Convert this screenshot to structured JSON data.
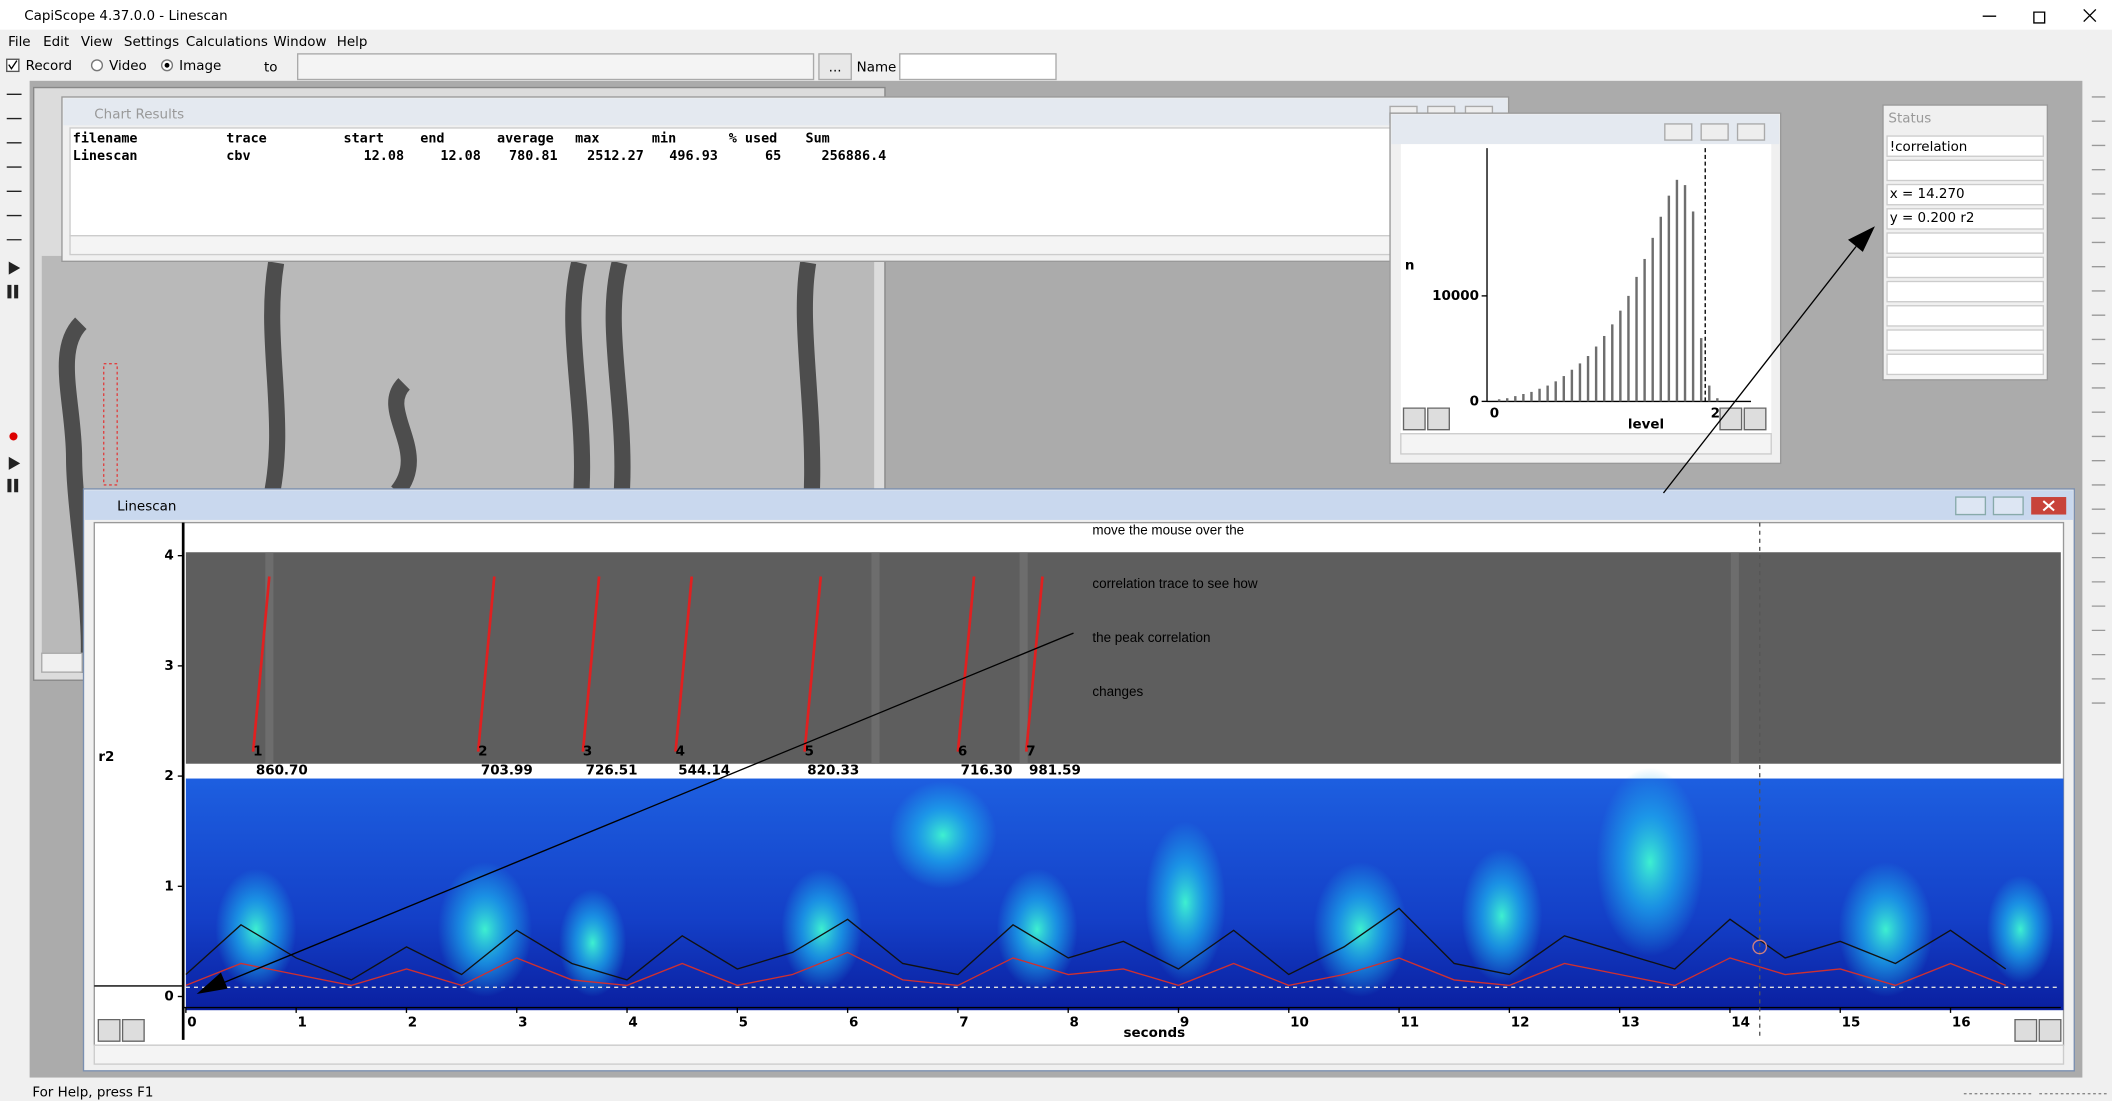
{
  "window": {
    "title": "CapiScope 4.37.0.0 - Linescan"
  },
  "menu": [
    "File",
    "Edit",
    "View",
    "Settings",
    "Calculations",
    "Window",
    "Help"
  ],
  "toolbar": {
    "record": "Record",
    "video": "Video",
    "image": "Image",
    "to": "to",
    "browse": "...",
    "name": "Name"
  },
  "chart_results": {
    "title": "Chart Results",
    "columns": [
      "filename",
      "trace",
      "start",
      "end",
      "average",
      "max",
      "min",
      "% used",
      "Sum"
    ],
    "rows": [
      [
        "Linescan",
        "cbv",
        "12.08",
        "12.08",
        "780.81",
        "2512.27",
        "496.93",
        "65",
        "256886.4"
      ]
    ]
  },
  "histogram": {
    "type": "bar",
    "y_label": "n",
    "x_label": "level",
    "ylim": [
      0,
      24000
    ],
    "yticks": [
      0,
      10000
    ],
    "x_tick_labels": [
      "0",
      "2"
    ],
    "color": "#6e6e6e",
    "counts": [
      200,
      300,
      500,
      700,
      900,
      1200,
      1500,
      1900,
      2400,
      3000,
      3600,
      4300,
      5200,
      6200,
      7300,
      8600,
      10000,
      11800,
      13500,
      15500,
      17500,
      19500,
      21000,
      20500,
      18000,
      6000,
      1500,
      300
    ]
  },
  "status": {
    "title": "Status",
    "fields": [
      "!correlation",
      "x = 14.270",
      "y = 0.200 r2"
    ]
  },
  "chart_data": {
    "type": "line",
    "title": "Linescan",
    "y_label": "r2",
    "x_label": "seconds",
    "xlim": [
      0,
      17
    ],
    "ylim": [
      -0.1,
      4.3
    ],
    "xticks": [
      0,
      1,
      2,
      3,
      4,
      5,
      6,
      7,
      8,
      9,
      10,
      11,
      12,
      13,
      14,
      15,
      16
    ],
    "yticks": [
      0,
      1,
      2,
      3,
      4
    ],
    "x": [
      0,
      0.5,
      1,
      1.5,
      2,
      2.5,
      3,
      3.5,
      4,
      4.5,
      5,
      5.5,
      6,
      6.5,
      7,
      7.5,
      8,
      8.5,
      9,
      9.5,
      10,
      10.5,
      11,
      11.5,
      12,
      12.5,
      13,
      13.5,
      14,
      14.5,
      15,
      15.5,
      16,
      16.5
    ],
    "series": [
      {
        "color": "#111111",
        "values": [
          0.2,
          0.65,
          0.35,
          0.15,
          0.45,
          0.2,
          0.6,
          0.3,
          0.15,
          0.55,
          0.25,
          0.4,
          0.7,
          0.3,
          0.2,
          0.65,
          0.35,
          0.5,
          0.25,
          0.6,
          0.2,
          0.45,
          0.8,
          0.3,
          0.2,
          0.55,
          0.4,
          0.25,
          0.7,
          0.35,
          0.5,
          0.3,
          0.6,
          0.25
        ]
      },
      {
        "color": "#d03030",
        "values": [
          0.1,
          0.3,
          0.2,
          0.1,
          0.25,
          0.1,
          0.35,
          0.15,
          0.1,
          0.3,
          0.1,
          0.2,
          0.4,
          0.15,
          0.1,
          0.35,
          0.2,
          0.25,
          0.1,
          0.3,
          0.1,
          0.2,
          0.35,
          0.15,
          0.1,
          0.3,
          0.2,
          0.1,
          0.35,
          0.2,
          0.25,
          0.1,
          0.3,
          0.1
        ]
      }
    ],
    "peaks": {
      "numbers": [
        "1",
        "2",
        "3",
        "4",
        "5",
        "6",
        "7"
      ],
      "speeds": [
        "860.70",
        "703.99",
        "726.51",
        "544.14",
        "820.33",
        "716.30",
        "981.59"
      ],
      "x": [
        0.61,
        2.65,
        3.6,
        4.44,
        5.61,
        7.0,
        7.62
      ],
      "color": "#e02020"
    },
    "cursor_x": 14.27,
    "annotation": [
      "move the mouse over the",
      "correlation trace to see how",
      "the peak correlation",
      "changes"
    ]
  },
  "status_bar": "For Help, press F1"
}
